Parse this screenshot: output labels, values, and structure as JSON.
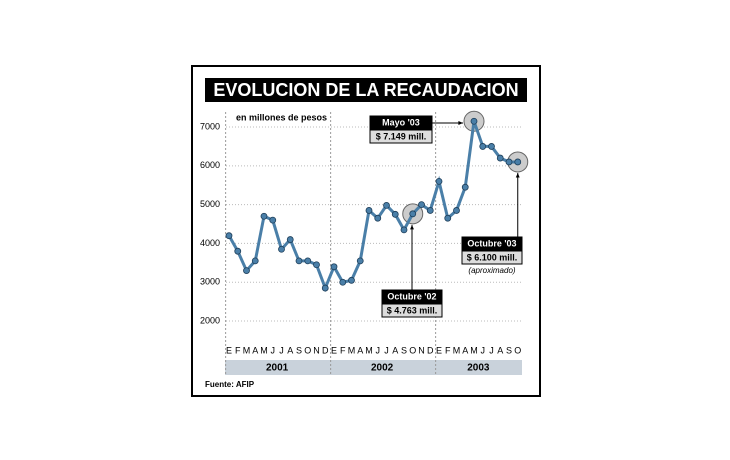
{
  "chart_data": {
    "type": "line",
    "title": "EVOLUCION DE LA RECAUDACION",
    "subtitle": "en millones de pesos",
    "categories": [
      "E",
      "F",
      "M",
      "A",
      "M",
      "J",
      "J",
      "A",
      "S",
      "O",
      "N",
      "D",
      "E",
      "F",
      "M",
      "A",
      "M",
      "J",
      "J",
      "A",
      "S",
      "O",
      "N",
      "D",
      "E",
      "F",
      "M",
      "A",
      "M",
      "J",
      "J",
      "A",
      "S",
      "O"
    ],
    "years": [
      "2001",
      "2002",
      "2003"
    ],
    "series": [
      {
        "name": "Recaudación",
        "color": "#4a7fa8",
        "values": [
          4200,
          3800,
          3300,
          3550,
          4700,
          4600,
          3850,
          4100,
          3550,
          3550,
          3450,
          2850,
          3400,
          3000,
          3050,
          3550,
          4850,
          4650,
          4980,
          4750,
          4350,
          4763,
          5000,
          4850,
          5600,
          4650,
          4850,
          5450,
          7149,
          6500,
          6500,
          6200,
          6100,
          6100
        ]
      }
    ],
    "ylim": [
      1800,
      7400
    ],
    "yticks": [
      2000,
      3000,
      4000,
      5000,
      6000,
      7000
    ],
    "grid": true,
    "annotations": [
      {
        "title": "Mayo '03",
        "text": "$ 7.149 mill."
      },
      {
        "title": "Octubre '02",
        "text": "$ 4.763 mill."
      },
      {
        "title": "Octubre '03",
        "text": "$ 6.100 mill.",
        "note": "(aproximado)"
      }
    ],
    "source": "Fuente: AFIP"
  }
}
